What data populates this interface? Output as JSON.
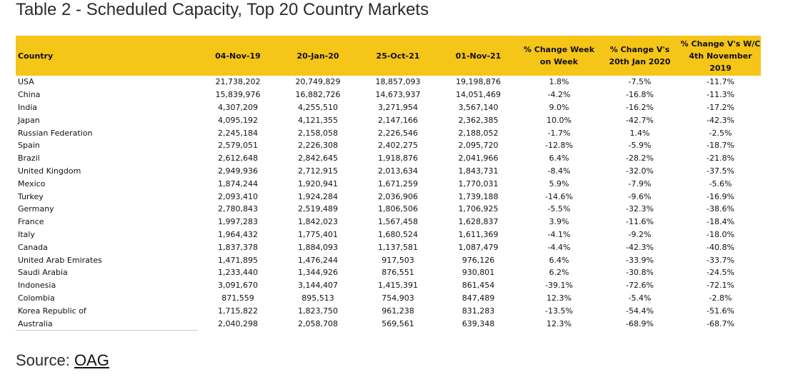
{
  "title": "Table 2 - Scheduled Capacity, Top 20 Country Markets",
  "table": {
    "headers": [
      "Country",
      "04-Nov-19",
      "20-Jan-20",
      "25-Oct-21",
      "01-Nov-21",
      "% Change Week on Week",
      "% Change V's 20th Jan 2020",
      "% Change V's W/C 4th November 2019"
    ],
    "rows": [
      [
        "USA",
        "21,738,202",
        "20,749,829",
        "18,857,093",
        "19,198,876",
        "1.8%",
        "-7.5%",
        "-11.7%"
      ],
      [
        "China",
        "15,839,976",
        "16,882,726",
        "14,673,937",
        "14,051,469",
        "-4.2%",
        "-16.8%",
        "-11.3%"
      ],
      [
        "India",
        "4,307,209",
        "4,255,510",
        "3,271,954",
        "3,567,140",
        "9.0%",
        "-16.2%",
        "-17.2%"
      ],
      [
        "Japan",
        "4,095,192",
        "4,121,355",
        "2,147,166",
        "2,362,385",
        "10.0%",
        "-42.7%",
        "-42.3%"
      ],
      [
        "Russian Federation",
        "2,245,184",
        "2,158,058",
        "2,226,546",
        "2,188,052",
        "-1.7%",
        "1.4%",
        "-2.5%"
      ],
      [
        "Spain",
        "2,579,051",
        "2,226,308",
        "2,402,275",
        "2,095,720",
        "-12.8%",
        "-5.9%",
        "-18.7%"
      ],
      [
        "Brazil",
        "2,612,648",
        "2,842,645",
        "1,918,876",
        "2,041,966",
        "6.4%",
        "-28.2%",
        "-21.8%"
      ],
      [
        "United Kingdom",
        "2,949,936",
        "2,712,915",
        "2,013,634",
        "1,843,731",
        "-8.4%",
        "-32.0%",
        "-37.5%"
      ],
      [
        "Mexico",
        "1,874,244",
        "1,920,941",
        "1,671,259",
        "1,770,031",
        "5.9%",
        "-7.9%",
        "-5.6%"
      ],
      [
        "Turkey",
        "2,093,410",
        "1,924,284",
        "2,036,906",
        "1,739,188",
        "-14.6%",
        "-9.6%",
        "-16.9%"
      ],
      [
        "Germany",
        "2,780,843",
        "2,519,489",
        "1,806,506",
        "1,706,925",
        "-5.5%",
        "-32.3%",
        "-38.6%"
      ],
      [
        "France",
        "1,997,283",
        "1,842,023",
        "1,567,458",
        "1,628,837",
        "3.9%",
        "-11.6%",
        "-18.4%"
      ],
      [
        "Italy",
        "1,964,432",
        "1,775,401",
        "1,680,524",
        "1,611,369",
        "-4.1%",
        "-9.2%",
        "-18.0%"
      ],
      [
        "Canada",
        "1,837,378",
        "1,884,093",
        "1,137,581",
        "1,087,479",
        "-4.4%",
        "-42.3%",
        "-40.8%"
      ],
      [
        "United Arab Emirates",
        "1,471,895",
        "1,476,244",
        "917,503",
        "976,126",
        "6.4%",
        "-33.9%",
        "-33.7%"
      ],
      [
        "Saudi Arabia",
        "1,233,440",
        "1,344,926",
        "876,551",
        "930,801",
        "6.2%",
        "-30.8%",
        "-24.5%"
      ],
      [
        "Indonesia",
        "3,091,670",
        "3,144,407",
        "1,415,391",
        "861,454",
        "-39.1%",
        "-72.6%",
        "-72.1%"
      ],
      [
        "Colombia",
        "871,559",
        "895,513",
        "754,903",
        "847,489",
        "12.3%",
        "-5.4%",
        "-2.8%"
      ],
      [
        "Korea Republic of",
        "1,715,822",
        "1,823,750",
        "961,238",
        "831,283",
        "-13.5%",
        "-54.4%",
        "-51.6%"
      ],
      [
        "Australia",
        "2,040,298",
        "2,058,708",
        "569,561",
        "639,348",
        "12.3%",
        "-68.9%",
        "-68.7%"
      ]
    ]
  },
  "source": {
    "prefix": "Source: ",
    "link_text": "OAG"
  },
  "colors": {
    "header_bg": "#f5c518"
  }
}
